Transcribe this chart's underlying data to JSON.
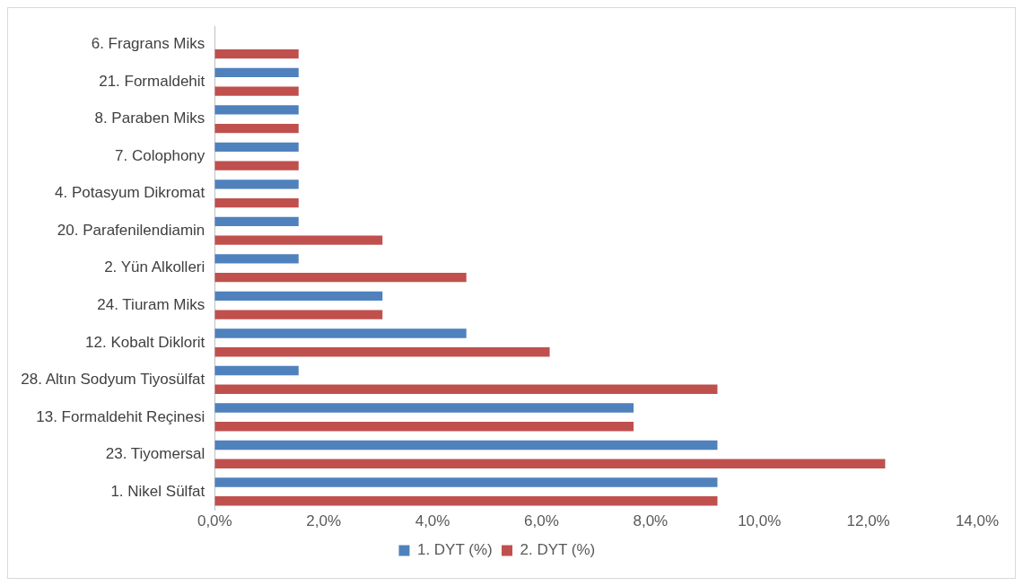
{
  "chart_data": {
    "type": "bar",
    "orientation": "horizontal",
    "categories": [
      "6. Fragrans Miks",
      "21. Formaldehit",
      "8. Paraben Miks",
      "7. Colophony",
      "4. Potasyum Dikromat",
      "20. Parafenilendiamin",
      "2. Yün Alkolleri",
      "24. Tiuram Miks",
      "12. Kobalt Diklorit",
      "28. Altın Sodyum Tiyosülfat",
      "13. Formaldehit Reçinesi",
      "23. Tiyomersal",
      "1. Nikel Sülfat"
    ],
    "series": [
      {
        "name": "1. DYT (%)",
        "color": "#4f81bd",
        "values": [
          0,
          1.54,
          1.54,
          1.54,
          1.54,
          1.54,
          1.54,
          3.08,
          4.62,
          1.54,
          7.69,
          9.23,
          9.23
        ]
      },
      {
        "name": "2. DYT (%)",
        "color": "#c0504d",
        "values": [
          1.54,
          1.54,
          1.54,
          1.54,
          1.54,
          3.08,
          4.62,
          3.08,
          6.15,
          9.23,
          7.69,
          12.31,
          9.23
        ]
      }
    ],
    "xlim": [
      0,
      14
    ],
    "xticks": [
      {
        "value": 0,
        "label": "0,0%"
      },
      {
        "value": 2,
        "label": "2,0%"
      },
      {
        "value": 4,
        "label": "4,0%"
      },
      {
        "value": 6,
        "label": "6,0%"
      },
      {
        "value": 8,
        "label": "8,0%"
      },
      {
        "value": 10,
        "label": "10,0%"
      },
      {
        "value": 12,
        "label": "12,0%"
      },
      {
        "value": 14,
        "label": "14,0%"
      }
    ],
    "legend": "bottom"
  }
}
